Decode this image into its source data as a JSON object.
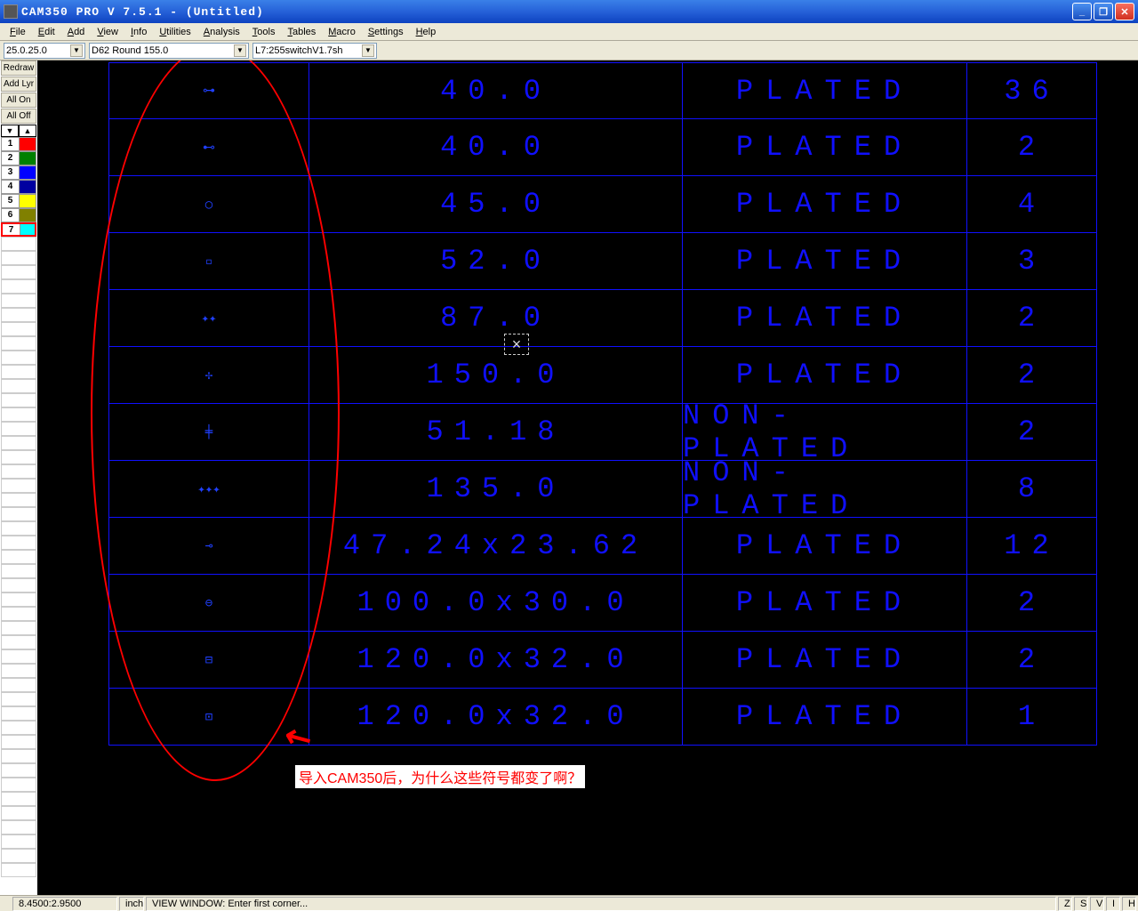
{
  "title": "CAM350 PRO V 7.5.1 - (Untitled)",
  "menu": [
    "File",
    "Edit",
    "Add",
    "View",
    "Info",
    "Utilities",
    "Analysis",
    "Tools",
    "Tables",
    "Macro",
    "Settings",
    "Help"
  ],
  "combo1": "25.0.25.0",
  "combo2": "D62  Round 155.0",
  "combo3": "L7:255switchV1.7sh",
  "side_buttons": [
    "Redraw",
    "Add Lyr",
    "All On",
    "All Off"
  ],
  "layers": [
    {
      "n": "1",
      "color": "#ff0000"
    },
    {
      "n": "2",
      "color": "#008000"
    },
    {
      "n": "3",
      "color": "#0000ff"
    },
    {
      "n": "4",
      "color": "#0000a0"
    },
    {
      "n": "5",
      "color": "#ffff00"
    },
    {
      "n": "6",
      "color": "#808000"
    },
    {
      "n": "7",
      "color": "#00ffff",
      "selected": true
    }
  ],
  "rows": [
    {
      "sym": "⊶",
      "size": "40.0",
      "type": "PLATED",
      "qty": "36"
    },
    {
      "sym": "⊷",
      "size": "40.0",
      "type": "PLATED",
      "qty": "2"
    },
    {
      "sym": "○",
      "size": "45.0",
      "type": "PLATED",
      "qty": "4"
    },
    {
      "sym": "▫",
      "size": "52.0",
      "type": "PLATED",
      "qty": "3"
    },
    {
      "sym": "✦✦",
      "size": "87.0",
      "type": "PLATED",
      "qty": "2"
    },
    {
      "sym": "✢",
      "size": "150.0",
      "type": "PLATED",
      "qty": "2"
    },
    {
      "sym": "╪",
      "size": "51.18",
      "type": "NON-PLATED",
      "qty": "2"
    },
    {
      "sym": "✦✦✦",
      "size": "135.0",
      "type": "NON-PLATED",
      "qty": "8"
    },
    {
      "sym": "⊸",
      "size": "47.24x23.62",
      "type": "PLATED",
      "qty": "12"
    },
    {
      "sym": "⊖",
      "size": "100.0x30.0",
      "type": "PLATED",
      "qty": "2"
    },
    {
      "sym": "⊟",
      "size": "120.0x32.0",
      "type": "PLATED",
      "qty": "2"
    },
    {
      "sym": "⊡",
      "size": "120.0x32.0",
      "type": "PLATED",
      "qty": "1"
    }
  ],
  "annotation": "导入CAM350后，为什么这些符号都变了啊？",
  "status": {
    "coord": "8.4500:2.9500",
    "unit": "inch",
    "msg": "VIEW WINDOW: Enter first corner...",
    "flags": [
      "Z",
      "S",
      "V",
      "I",
      "H"
    ]
  }
}
